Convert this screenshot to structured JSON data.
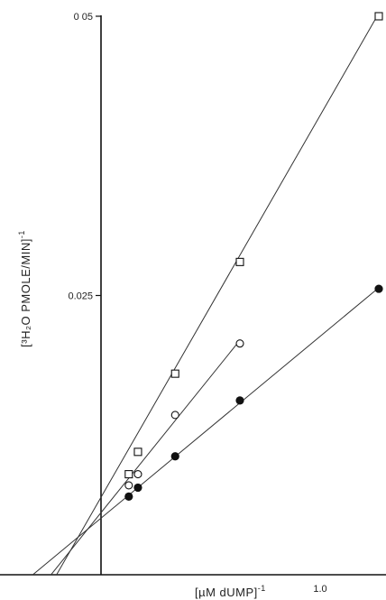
{
  "chart_data": {
    "type": "scatter",
    "title": "",
    "xlabel": "[µM dUMP]",
    "xlabel_exponent": "-1",
    "ylabel": "[³H₂O PMOLE/MIN]",
    "ylabel_exponent": "-1",
    "x_tick_labels": [
      {
        "value": 1.0,
        "label": "1.0"
      }
    ],
    "y_tick_labels": [
      {
        "value": 0.025,
        "label": "0.025"
      },
      {
        "value": 0.05,
        "label": "0 05"
      }
    ],
    "xlim": [
      -0.25,
      1.02
    ],
    "ylim": [
      0,
      0.05
    ],
    "grid": false,
    "legend": "none",
    "series": [
      {
        "marker": "open-square",
        "points": [
          [
            0.1,
            0.009
          ],
          [
            0.133,
            0.011
          ],
          [
            0.267,
            0.018
          ],
          [
            0.5,
            0.028
          ],
          [
            1.0,
            0.05
          ]
        ],
        "fit_x_range": [
          -0.16,
          1.0
        ]
      },
      {
        "marker": "open-circle",
        "points": [
          [
            0.1,
            0.008
          ],
          [
            0.133,
            0.009
          ],
          [
            0.267,
            0.0143
          ],
          [
            0.5,
            0.0207
          ]
        ],
        "fit_x_range": [
          -0.18,
          0.5
        ]
      },
      {
        "marker": "filled-circle",
        "points": [
          [
            0.1,
            0.007
          ],
          [
            0.133,
            0.0078
          ],
          [
            0.267,
            0.0106
          ],
          [
            0.5,
            0.0156
          ],
          [
            1.0,
            0.0256
          ]
        ],
        "fit_x_range": [
          -0.245,
          1.0
        ]
      }
    ]
  }
}
